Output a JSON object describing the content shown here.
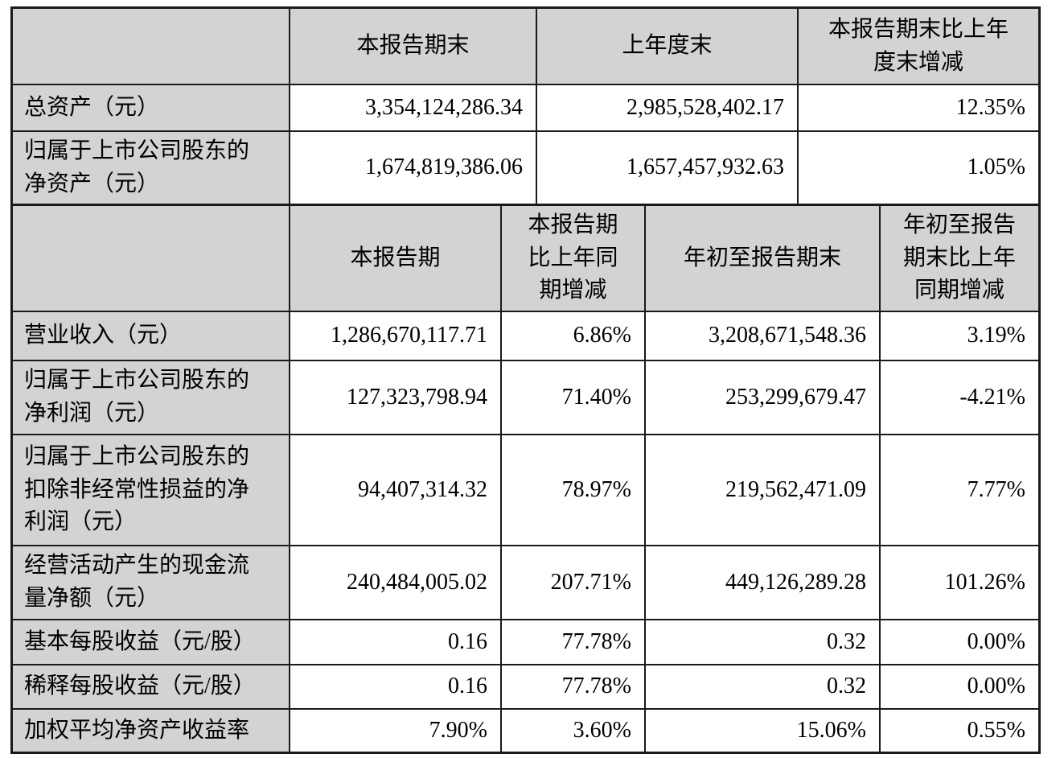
{
  "colors": {
    "header_bg": "#d3d3d3",
    "border": "#1a1a1a",
    "cell_bg": "#ffffff",
    "text": "#000000"
  },
  "table1": {
    "headers": [
      "",
      "本报告期末",
      "上年度末",
      "本报告期末比上年\n度末增减"
    ],
    "rows": [
      {
        "label": "总资产（元）",
        "values": [
          "3,354,124,286.34",
          "2,985,528,402.17",
          "12.35%"
        ]
      },
      {
        "label": "归属于上市公司股东的\n净资产（元）",
        "values": [
          "1,674,819,386.06",
          "1,657,457,932.63",
          "1.05%"
        ]
      }
    ]
  },
  "table2": {
    "headers": [
      "",
      "本报告期",
      "本报告期\n比上年同\n期增减",
      "年初至报告期末",
      "年初至报告\n期末比上年\n同期增减"
    ],
    "rows": [
      {
        "label": "营业收入（元）",
        "values": [
          "1,286,670,117.71",
          "6.86%",
          "3,208,671,548.36",
          "3.19%"
        ]
      },
      {
        "label": "归属于上市公司股东的\n净利润（元）",
        "values": [
          "127,323,798.94",
          "71.40%",
          "253,299,679.47",
          "-4.21%"
        ]
      },
      {
        "label": "归属于上市公司股东的\n扣除非经常性损益的净\n利润（元）",
        "values": [
          "94,407,314.32",
          "78.97%",
          "219,562,471.09",
          "7.77%"
        ]
      },
      {
        "label": "经营活动产生的现金流\n量净额（元）",
        "values": [
          "240,484,005.02",
          "207.71%",
          "449,126,289.28",
          "101.26%"
        ]
      },
      {
        "label": "基本每股收益（元/股）",
        "values": [
          "0.16",
          "77.78%",
          "0.32",
          "0.00%"
        ]
      },
      {
        "label": "稀释每股收益（元/股）",
        "values": [
          "0.16",
          "77.78%",
          "0.32",
          "0.00%"
        ]
      },
      {
        "label": "加权平均净资产收益率",
        "values": [
          "7.90%",
          "3.60%",
          "15.06%",
          "0.55%"
        ]
      }
    ]
  }
}
